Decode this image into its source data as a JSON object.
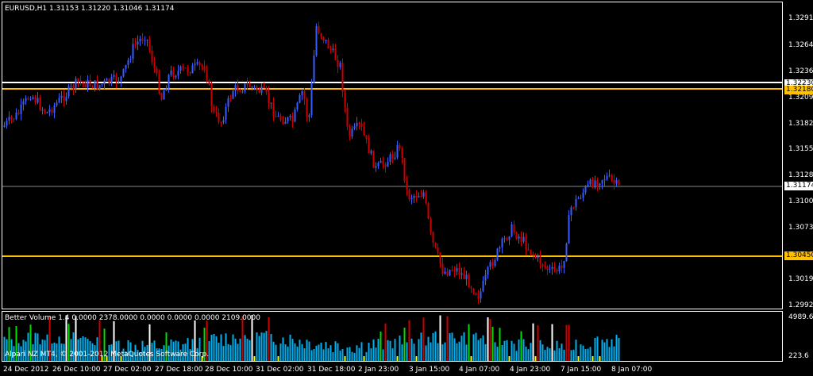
{
  "window": {
    "symbol_title": "EURUSD,H1  1.31153 1.31220 1.31046 1.31174",
    "indicator_title": "Better Volume 1.4 0.0000 2378.0000 0.0000 0.0000 0.0000 2109.0000",
    "watermark": "Alpari NZ MT4, © 2001-2012 MetaQuotes Software Corp."
  },
  "price_axis": {
    "ticks": [
      "1.32910",
      "1.32640",
      "1.32365",
      "1.32095",
      "1.31820",
      "1.31550",
      "1.31280",
      "1.31005",
      "1.30735",
      "1.30190",
      "1.29920"
    ],
    "current_price": "1.31174",
    "level_white": "1.32230",
    "level_yellow_upper": "1.32180",
    "level_yellow_lower": "1.30450"
  },
  "volume_axis": {
    "max_label": "4989.6",
    "min_label": "223.6"
  },
  "time_axis": {
    "labels": [
      "24 Dec 2012",
      "26 Dec 10:00",
      "27 Dec 02:00",
      "27 Dec 18:00",
      "28 Dec 10:00",
      "31 Dec 02:00",
      "31 Dec 18:00",
      "2 Jan 23:00",
      "3 Jan 15:00",
      "4 Jan 07:00",
      "4 Jan 23:00",
      "7 Jan 15:00",
      "8 Jan 07:00"
    ]
  },
  "colors": {
    "bull": "#3a5cff",
    "bear": "#cc0000",
    "level_white": "#ffffff",
    "level_yellow": "#ffc000",
    "volume_normal": "#00b0f0",
    "volume_high": "#cc0000",
    "volume_climax": "#ffffff",
    "volume_churn": "#00dd00",
    "volume_low": "#ffff00"
  }
}
